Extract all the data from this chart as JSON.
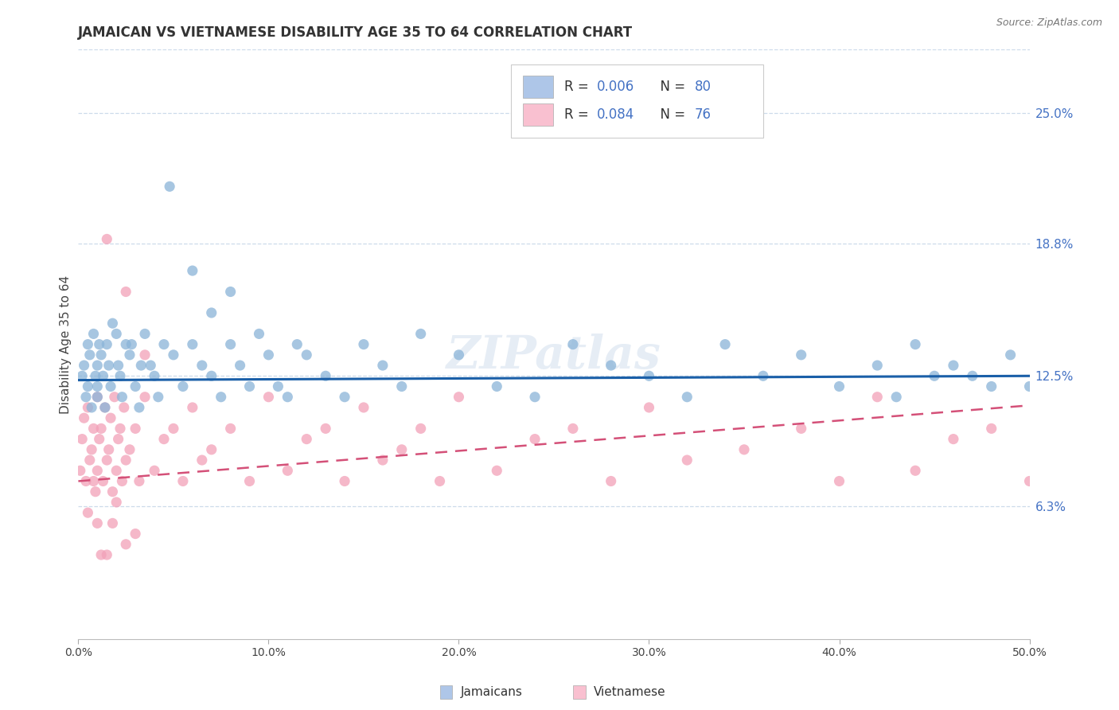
{
  "title": "JAMAICAN VS VIETNAMESE DISABILITY AGE 35 TO 64 CORRELATION CHART",
  "source_text": "Source: ZipAtlas.com",
  "ylabel": "Disability Age 35 to 64",
  "xmin": 0.0,
  "xmax": 50.0,
  "ymin": 0.0,
  "ymax": 28.0,
  "ytick_vals": [
    6.3,
    12.5,
    18.8,
    25.0
  ],
  "xtick_vals": [
    0,
    10,
    20,
    30,
    40,
    50
  ],
  "blue_color": "#8ab4d8",
  "pink_color": "#f2a0b8",
  "blue_edge": "#7aa8d0",
  "pink_edge": "#e890a8",
  "blue_fill_leg": "#aec6e8",
  "pink_fill_leg": "#f9c0d0",
  "trend_blue_color": "#1a5fa8",
  "trend_pink_color": "#d45078",
  "blue_slope": 0.004,
  "blue_intercept": 12.3,
  "pink_slope": 0.072,
  "pink_intercept": 7.5,
  "watermark": "ZIPatlas",
  "label1": "Jamaicans",
  "label2": "Vietnamese",
  "jamaican_x": [
    0.2,
    0.3,
    0.4,
    0.5,
    0.5,
    0.6,
    0.7,
    0.8,
    0.9,
    1.0,
    1.0,
    1.0,
    1.1,
    1.2,
    1.3,
    1.4,
    1.5,
    1.6,
    1.7,
    1.8,
    2.0,
    2.1,
    2.2,
    2.3,
    2.5,
    2.7,
    3.0,
    3.2,
    3.5,
    3.8,
    4.0,
    4.2,
    4.5,
    5.0,
    5.5,
    6.0,
    6.5,
    7.0,
    7.5,
    8.0,
    8.5,
    9.0,
    9.5,
    10.0,
    10.5,
    11.0,
    11.5,
    12.0,
    13.0,
    14.0,
    15.0,
    16.0,
    17.0,
    18.0,
    20.0,
    22.0,
    24.0,
    26.0,
    28.0,
    30.0,
    32.0,
    34.0,
    36.0,
    38.0,
    40.0,
    42.0,
    43.0,
    44.0,
    45.0,
    46.0,
    47.0,
    48.0,
    49.0,
    50.0,
    6.0,
    7.0,
    8.0,
    2.8,
    3.3,
    4.8
  ],
  "jamaican_y": [
    12.5,
    13.0,
    11.5,
    14.0,
    12.0,
    13.5,
    11.0,
    14.5,
    12.5,
    13.0,
    12.0,
    11.5,
    14.0,
    13.5,
    12.5,
    11.0,
    14.0,
    13.0,
    12.0,
    15.0,
    14.5,
    13.0,
    12.5,
    11.5,
    14.0,
    13.5,
    12.0,
    11.0,
    14.5,
    13.0,
    12.5,
    11.5,
    14.0,
    13.5,
    12.0,
    14.0,
    13.0,
    12.5,
    11.5,
    14.0,
    13.0,
    12.0,
    14.5,
    13.5,
    12.0,
    11.5,
    14.0,
    13.5,
    12.5,
    11.5,
    14.0,
    13.0,
    12.0,
    14.5,
    13.5,
    12.0,
    11.5,
    14.0,
    13.0,
    12.5,
    11.5,
    14.0,
    12.5,
    13.5,
    12.0,
    13.0,
    11.5,
    14.0,
    12.5,
    13.0,
    12.5,
    12.0,
    13.5,
    12.0,
    17.5,
    15.5,
    16.5,
    14.0,
    13.0,
    21.5
  ],
  "vietnamese_x": [
    0.1,
    0.2,
    0.3,
    0.4,
    0.5,
    0.6,
    0.7,
    0.8,
    0.9,
    1.0,
    1.0,
    1.1,
    1.2,
    1.3,
    1.4,
    1.5,
    1.6,
    1.7,
    1.8,
    1.9,
    2.0,
    2.1,
    2.2,
    2.3,
    2.4,
    2.5,
    2.7,
    3.0,
    3.2,
    3.5,
    4.0,
    4.5,
    5.0,
    5.5,
    6.0,
    6.5,
    7.0,
    8.0,
    9.0,
    10.0,
    11.0,
    12.0,
    13.0,
    14.0,
    15.0,
    16.0,
    17.0,
    18.0,
    19.0,
    20.0,
    22.0,
    24.0,
    26.0,
    28.0,
    30.0,
    32.0,
    35.0,
    38.0,
    40.0,
    42.0,
    44.0,
    46.0,
    48.0,
    50.0,
    1.5,
    2.5,
    3.5,
    1.0,
    1.5,
    2.0,
    2.5,
    3.0,
    0.5,
    0.8,
    1.2,
    1.8
  ],
  "vietnamese_y": [
    8.0,
    9.5,
    10.5,
    7.5,
    11.0,
    8.5,
    9.0,
    10.0,
    7.0,
    11.5,
    8.0,
    9.5,
    10.0,
    7.5,
    11.0,
    8.5,
    9.0,
    10.5,
    7.0,
    11.5,
    8.0,
    9.5,
    10.0,
    7.5,
    11.0,
    8.5,
    9.0,
    10.0,
    7.5,
    11.5,
    8.0,
    9.5,
    10.0,
    7.5,
    11.0,
    8.5,
    9.0,
    10.0,
    7.5,
    11.5,
    8.0,
    9.5,
    10.0,
    7.5,
    11.0,
    8.5,
    9.0,
    10.0,
    7.5,
    11.5,
    8.0,
    9.5,
    10.0,
    7.5,
    11.0,
    8.5,
    9.0,
    10.0,
    7.5,
    11.5,
    8.0,
    9.5,
    10.0,
    7.5,
    19.0,
    16.5,
    13.5,
    5.5,
    4.0,
    6.5,
    4.5,
    5.0,
    6.0,
    7.5,
    4.0,
    5.5
  ]
}
